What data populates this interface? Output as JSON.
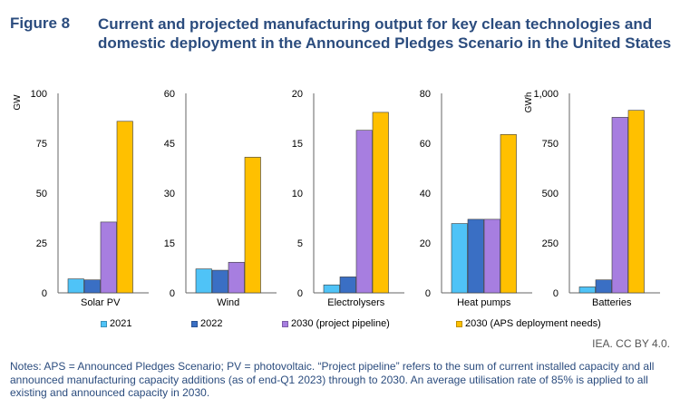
{
  "figure_label": "Figure 8",
  "title": "Current and projected manufacturing output for key clean technologies and domestic deployment in the Announced Pledges Scenario in the United States",
  "source": "IEA. CC BY 4.0.",
  "notes": "Notes: APS = Announced Pledges Scenario; PV = photovoltaic. “Project pipeline” refers to the sum of current installed capacity and all announced manufacturing capacity additions (as of end-Q1 2023) through to 2030. An average utilisation rate of 85% is applied to all existing and announced capacity in 2030.",
  "colors": {
    "s2021": "#4fc3f7",
    "s2022": "#3a6fc4",
    "s2030p": "#a77ee0",
    "s2030a": "#ffc000"
  },
  "chart_data": [
    {
      "type": "bar",
      "category": "Solar PV",
      "ylabel": "GW",
      "ylim": [
        0,
        100
      ],
      "ticks": [
        "0",
        "25",
        "50",
        "75",
        "100"
      ],
      "tick_values": [
        0,
        25,
        50,
        75,
        100
      ],
      "values": [
        7,
        6.5,
        35.5,
        86
      ]
    },
    {
      "type": "bar",
      "category": "Wind",
      "ylabel": "",
      "ylim": [
        0,
        60
      ],
      "ticks": [
        "0",
        "15",
        "30",
        "45",
        "60"
      ],
      "tick_values": [
        0,
        15,
        30,
        45,
        60
      ],
      "values": [
        7.2,
        6.8,
        9.2,
        40.8
      ]
    },
    {
      "type": "bar",
      "category": "Electrolysers",
      "ylabel": "",
      "ylim": [
        0,
        20
      ],
      "ticks": [
        "0",
        "5",
        "10",
        "15",
        "20"
      ],
      "tick_values": [
        0,
        5,
        10,
        15,
        20
      ],
      "values": [
        0.8,
        1.6,
        16.3,
        18.1
      ]
    },
    {
      "type": "bar",
      "category": "Heat pumps",
      "ylabel": "",
      "ylim": [
        0,
        80
      ],
      "ticks": [
        "0",
        "20",
        "40",
        "60",
        "80"
      ],
      "tick_values": [
        0,
        20,
        40,
        60,
        80
      ],
      "values": [
        27.8,
        29.5,
        29.5,
        63.5
      ]
    },
    {
      "type": "bar",
      "category": "Batteries",
      "ylabel": "GWh",
      "ylim": [
        0,
        1000
      ],
      "ticks": [
        "0",
        "250",
        "500",
        "750",
        "1,000"
      ],
      "tick_values": [
        0,
        250,
        500,
        750,
        1000
      ],
      "values": [
        30,
        65,
        880,
        915
      ]
    }
  ],
  "legend": [
    {
      "label": "2021",
      "color": "#4fc3f7"
    },
    {
      "label": "2022",
      "color": "#3a6fc4"
    },
    {
      "label": "2030 (project pipeline)",
      "color": "#a77ee0"
    },
    {
      "label": "2030 (APS deployment needs)",
      "color": "#ffc000"
    }
  ]
}
